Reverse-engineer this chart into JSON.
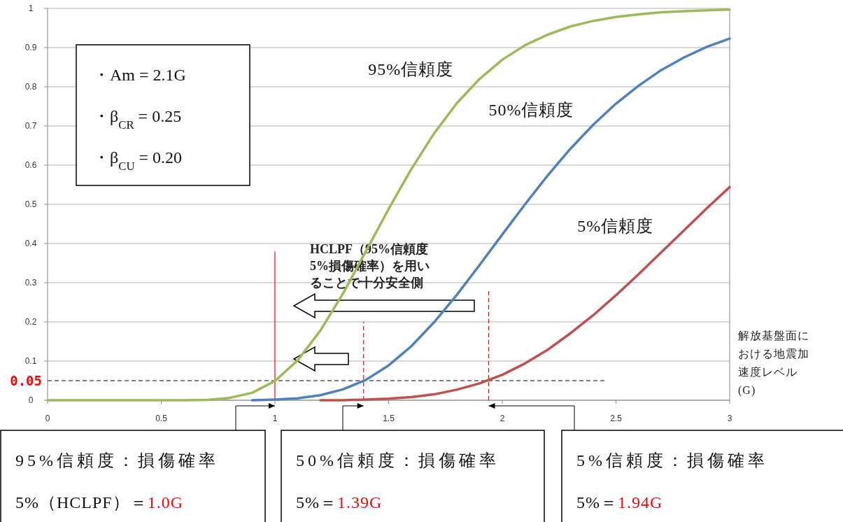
{
  "chart_data": {
    "type": "line",
    "xlabel": "解放基盤面における地震加速度レベル(G)",
    "x": [
      0,
      0.1,
      0.2,
      0.3,
      0.4,
      0.5,
      0.6,
      0.7,
      0.8,
      0.9,
      1.0,
      1.1,
      1.2,
      1.3,
      1.4,
      1.5,
      1.6,
      1.7,
      1.8,
      1.9,
      2.0,
      2.1,
      2.2,
      2.3,
      2.4,
      2.5,
      2.6,
      2.7,
      2.8,
      2.9,
      3.0
    ],
    "series": [
      {
        "name": "95%信頼度",
        "color": "#9bbb59",
        "values": [
          0,
          0,
          0,
          0,
          0,
          0,
          0,
          0.001,
          0.006,
          0.019,
          0.049,
          0.102,
          0.178,
          0.273,
          0.38,
          0.488,
          0.59,
          0.681,
          0.758,
          0.82,
          0.869,
          0.906,
          0.933,
          0.954,
          0.968,
          0.978,
          0.985,
          0.99,
          0.993,
          0.995,
          0.997
        ]
      },
      {
        "name": "50%信頼度",
        "color": "#4f81bd",
        "values": [
          null,
          null,
          null,
          null,
          null,
          null,
          null,
          null,
          null,
          0,
          0.002,
          0.005,
          0.013,
          0.028,
          0.052,
          0.089,
          0.138,
          0.199,
          0.269,
          0.345,
          0.423,
          0.5,
          0.574,
          0.642,
          0.703,
          0.757,
          0.803,
          0.843,
          0.875,
          0.902,
          0.923
        ]
      },
      {
        "name": "5%信頼度",
        "color": "#c0504d",
        "values": [
          null,
          null,
          null,
          null,
          null,
          null,
          null,
          null,
          null,
          null,
          null,
          null,
          0,
          0,
          0.002,
          0.004,
          0.008,
          0.015,
          0.027,
          0.043,
          0.065,
          0.094,
          0.129,
          0.171,
          0.217,
          0.268,
          0.322,
          0.378,
          0.434,
          0.49,
          0.544
        ]
      }
    ],
    "xlim": [
      0,
      3
    ],
    "xticks": [
      0,
      0.5,
      1,
      1.5,
      2,
      2.5,
      3
    ],
    "ylim": [
      0,
      1
    ],
    "yticks": [
      0,
      0.1,
      0.2,
      0.3,
      0.4,
      0.5,
      0.6,
      0.7,
      0.8,
      0.9,
      1
    ],
    "grid": "y",
    "ref_lines": [
      {
        "axis": "y",
        "value": 0.05,
        "label": "0.05",
        "color": "#000000",
        "line_style": "dashed"
      },
      {
        "axis": "x",
        "value": 1.0,
        "color": "#ff0000",
        "line_style": "solid"
      },
      {
        "axis": "x",
        "value": 1.39,
        "color": "#ff0000",
        "line_style": "dashed"
      },
      {
        "axis": "x",
        "value": 1.94,
        "color": "#ff0000",
        "line_style": "dashed"
      }
    ],
    "annotations": [
      "・Am = 2.1G",
      "・β$_{CR}$ = 0.25",
      "・β$_{CU}$ = 0.20",
      "HCLPF（95%信頼度5%損傷確率）を用いることで十分安全側",
      "95%信頼度：損傷確率",
      "5%（HCLPF）＝1.0G",
      "50%信頼度：損傷確率",
      "5%＝1.39G",
      "5%信頼度：損傷確率",
      "5%＝1.94G"
    ]
  }
}
